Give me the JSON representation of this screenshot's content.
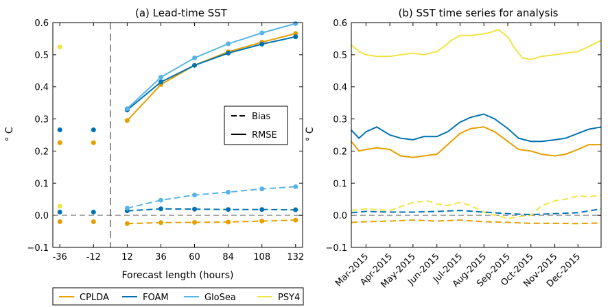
{
  "colors": {
    "CPLDA": "#E69F00",
    "FOAM": "#0072B2",
    "GloSea": "#56B4E9",
    "PSY4": "#F0E442",
    "zero_line": "#888888",
    "divider": "#555555"
  },
  "legend": {
    "entries": [
      "CPLDA",
      "FOAM",
      "GloSea",
      "PSY4"
    ],
    "style_entries": [
      "Bias",
      "RMSE"
    ],
    "placement": "bottom"
  },
  "chart_data": [
    {
      "type": "line",
      "title": "(a) Lead-time SST",
      "xlabel": "Forecast length (hours)",
      "ylabel": "° C",
      "ylim": [
        -0.1,
        0.6
      ],
      "yticks": [
        -0.1,
        0.0,
        0.1,
        0.2,
        0.3,
        0.4,
        0.5,
        0.6
      ],
      "ytick_labels": [
        "−0.1",
        "0.0",
        "0.1",
        "0.2",
        "0.3",
        "0.4",
        "0.5",
        "0.6"
      ],
      "xticks": [
        -36,
        -12,
        12,
        36,
        60,
        84,
        108,
        132
      ],
      "xtick_labels": [
        "-36",
        "-12",
        "12",
        "36",
        "60",
        "84",
        "108",
        "132"
      ],
      "xlim": [
        -41,
        137
      ],
      "divider_x": 0,
      "grid": false,
      "legend_placement": "center-right",
      "analysis_points": {
        "x": [
          -36,
          -12
        ],
        "rmse": {
          "CPLDA": [
            0.226,
            0.226
          ],
          "FOAM": [
            0.266,
            0.266
          ],
          "GloSea": [
            null,
            null
          ],
          "PSY4": [
            0.524,
            null
          ]
        },
        "bias": {
          "CPLDA": [
            -0.02,
            -0.02
          ],
          "FOAM": [
            0.01,
            0.01
          ],
          "GloSea": [
            null,
            null
          ],
          "PSY4": [
            0.028,
            null
          ]
        }
      },
      "x": [
        12,
        36,
        60,
        84,
        108,
        132
      ],
      "series": [
        {
          "name": "CPLDA",
          "rmse": [
            0.295,
            0.407,
            0.467,
            0.509,
            0.539,
            0.566
          ],
          "bias": [
            -0.026,
            -0.023,
            -0.022,
            -0.021,
            -0.018,
            -0.015
          ]
        },
        {
          "name": "FOAM",
          "rmse": [
            0.328,
            0.415,
            0.467,
            0.505,
            0.533,
            0.556
          ],
          "bias": [
            0.014,
            0.02,
            0.019,
            0.018,
            0.018,
            0.017
          ]
        },
        {
          "name": "GloSea",
          "rmse": [
            0.332,
            0.43,
            0.49,
            0.534,
            0.568,
            0.597
          ],
          "bias": [
            0.022,
            0.047,
            0.063,
            0.072,
            0.082,
            0.089
          ]
        }
      ]
    },
    {
      "type": "line",
      "title": "(b) SST time series for analysis",
      "ylabel": "° C",
      "ylim": [
        -0.1,
        0.6
      ],
      "yticks": [
        -0.1,
        0.0,
        0.1,
        0.2,
        0.3,
        0.4,
        0.5,
        0.6
      ],
      "ytick_labels": [
        "−0.1",
        "0.0",
        "0.1",
        "0.2",
        "0.3",
        "0.4",
        "0.5",
        "0.6"
      ],
      "xlim": [
        "2015-02-10",
        "2015-12-31"
      ],
      "xticks": [
        "2015-03-01",
        "2015-04-01",
        "2015-05-01",
        "2015-06-01",
        "2015-07-01",
        "2015-08-01",
        "2015-09-01",
        "2015-10-01",
        "2015-11-01",
        "2015-12-01"
      ],
      "xtick_labels": [
        "Mar-2015",
        "Apr-2015",
        "May-2015",
        "Jun-2015",
        "Jul-2015",
        "Aug-2015",
        "Sep-2015",
        "Oct-2015",
        "Nov-2015",
        "Dec-2015"
      ],
      "grid": false,
      "series": [
        {
          "name": "PSY4",
          "metric": "rmse",
          "x": [
            "2015-02-10",
            "2015-02-20",
            "2015-03-01",
            "2015-03-15",
            "2015-04-01",
            "2015-04-15",
            "2015-05-01",
            "2015-05-15",
            "2015-06-01",
            "2015-06-10",
            "2015-06-20",
            "2015-07-01",
            "2015-07-15",
            "2015-08-01",
            "2015-08-10",
            "2015-08-20",
            "2015-09-01",
            "2015-09-10",
            "2015-09-20",
            "2015-10-01",
            "2015-10-15",
            "2015-11-01",
            "2015-11-15",
            "2015-12-01",
            "2015-12-15",
            "2015-12-31"
          ],
          "y": [
            0.53,
            0.51,
            0.5,
            0.495,
            0.495,
            0.5,
            0.505,
            0.5,
            0.51,
            0.525,
            0.545,
            0.56,
            0.56,
            0.565,
            0.57,
            0.578,
            0.555,
            0.52,
            0.49,
            0.485,
            0.495,
            0.5,
            0.505,
            0.51,
            0.525,
            0.545
          ]
        },
        {
          "name": "FOAM",
          "metric": "rmse",
          "x": [
            "2015-02-10",
            "2015-02-20",
            "2015-03-01",
            "2015-03-15",
            "2015-04-01",
            "2015-04-15",
            "2015-05-01",
            "2015-05-15",
            "2015-06-01",
            "2015-06-15",
            "2015-07-01",
            "2015-07-15",
            "2015-08-01",
            "2015-08-15",
            "2015-09-01",
            "2015-09-15",
            "2015-10-01",
            "2015-10-15",
            "2015-11-01",
            "2015-11-15",
            "2015-12-01",
            "2015-12-15",
            "2015-12-31"
          ],
          "y": [
            0.265,
            0.24,
            0.26,
            0.275,
            0.25,
            0.24,
            0.235,
            0.245,
            0.245,
            0.26,
            0.29,
            0.305,
            0.315,
            0.3,
            0.27,
            0.24,
            0.23,
            0.23,
            0.235,
            0.24,
            0.255,
            0.268,
            0.275
          ]
        },
        {
          "name": "CPLDA",
          "metric": "rmse",
          "x": [
            "2015-02-10",
            "2015-02-20",
            "2015-03-01",
            "2015-03-15",
            "2015-04-01",
            "2015-04-15",
            "2015-05-01",
            "2015-05-15",
            "2015-06-01",
            "2015-06-15",
            "2015-07-01",
            "2015-07-15",
            "2015-08-01",
            "2015-08-15",
            "2015-09-01",
            "2015-09-15",
            "2015-10-01",
            "2015-10-15",
            "2015-11-01",
            "2015-11-15",
            "2015-12-01",
            "2015-12-15",
            "2015-12-31"
          ],
          "y": [
            0.23,
            0.2,
            0.205,
            0.21,
            0.205,
            0.185,
            0.18,
            0.185,
            0.19,
            0.22,
            0.255,
            0.27,
            0.275,
            0.26,
            0.23,
            0.205,
            0.2,
            0.19,
            0.185,
            0.19,
            0.205,
            0.22,
            0.22
          ]
        },
        {
          "name": "PSY4",
          "metric": "bias",
          "x": [
            "2015-02-10",
            "2015-03-01",
            "2015-04-01",
            "2015-05-01",
            "2015-05-20",
            "2015-06-01",
            "2015-06-15",
            "2015-07-01",
            "2015-07-15",
            "2015-08-01",
            "2015-08-15",
            "2015-09-01",
            "2015-09-15",
            "2015-10-01",
            "2015-10-15",
            "2015-11-01",
            "2015-11-15",
            "2015-12-01",
            "2015-12-15",
            "2015-12-31"
          ],
          "y": [
            0.015,
            0.02,
            0.015,
            0.04,
            0.045,
            0.035,
            0.03,
            0.04,
            0.03,
            0.01,
            0.0,
            -0.01,
            -0.005,
            0.0,
            0.03,
            0.045,
            0.05,
            0.06,
            0.058,
            0.062
          ]
        },
        {
          "name": "FOAM",
          "metric": "bias",
          "x": [
            "2015-02-10",
            "2015-03-01",
            "2015-04-01",
            "2015-05-01",
            "2015-06-01",
            "2015-07-01",
            "2015-08-01",
            "2015-09-01",
            "2015-10-01",
            "2015-11-01",
            "2015-12-01",
            "2015-12-31"
          ],
          "y": [
            0.008,
            0.012,
            0.01,
            0.01,
            0.012,
            0.015,
            0.01,
            0.005,
            0.002,
            0.005,
            0.008,
            0.02
          ]
        },
        {
          "name": "CPLDA",
          "metric": "bias",
          "x": [
            "2015-02-10",
            "2015-03-01",
            "2015-04-01",
            "2015-05-01",
            "2015-06-01",
            "2015-07-01",
            "2015-08-01",
            "2015-09-01",
            "2015-10-01",
            "2015-11-01",
            "2015-12-01",
            "2015-12-31"
          ],
          "y": [
            -0.022,
            -0.02,
            -0.018,
            -0.015,
            -0.018,
            -0.015,
            -0.02,
            -0.022,
            -0.025,
            -0.025,
            -0.026,
            -0.024
          ]
        }
      ]
    }
  ]
}
